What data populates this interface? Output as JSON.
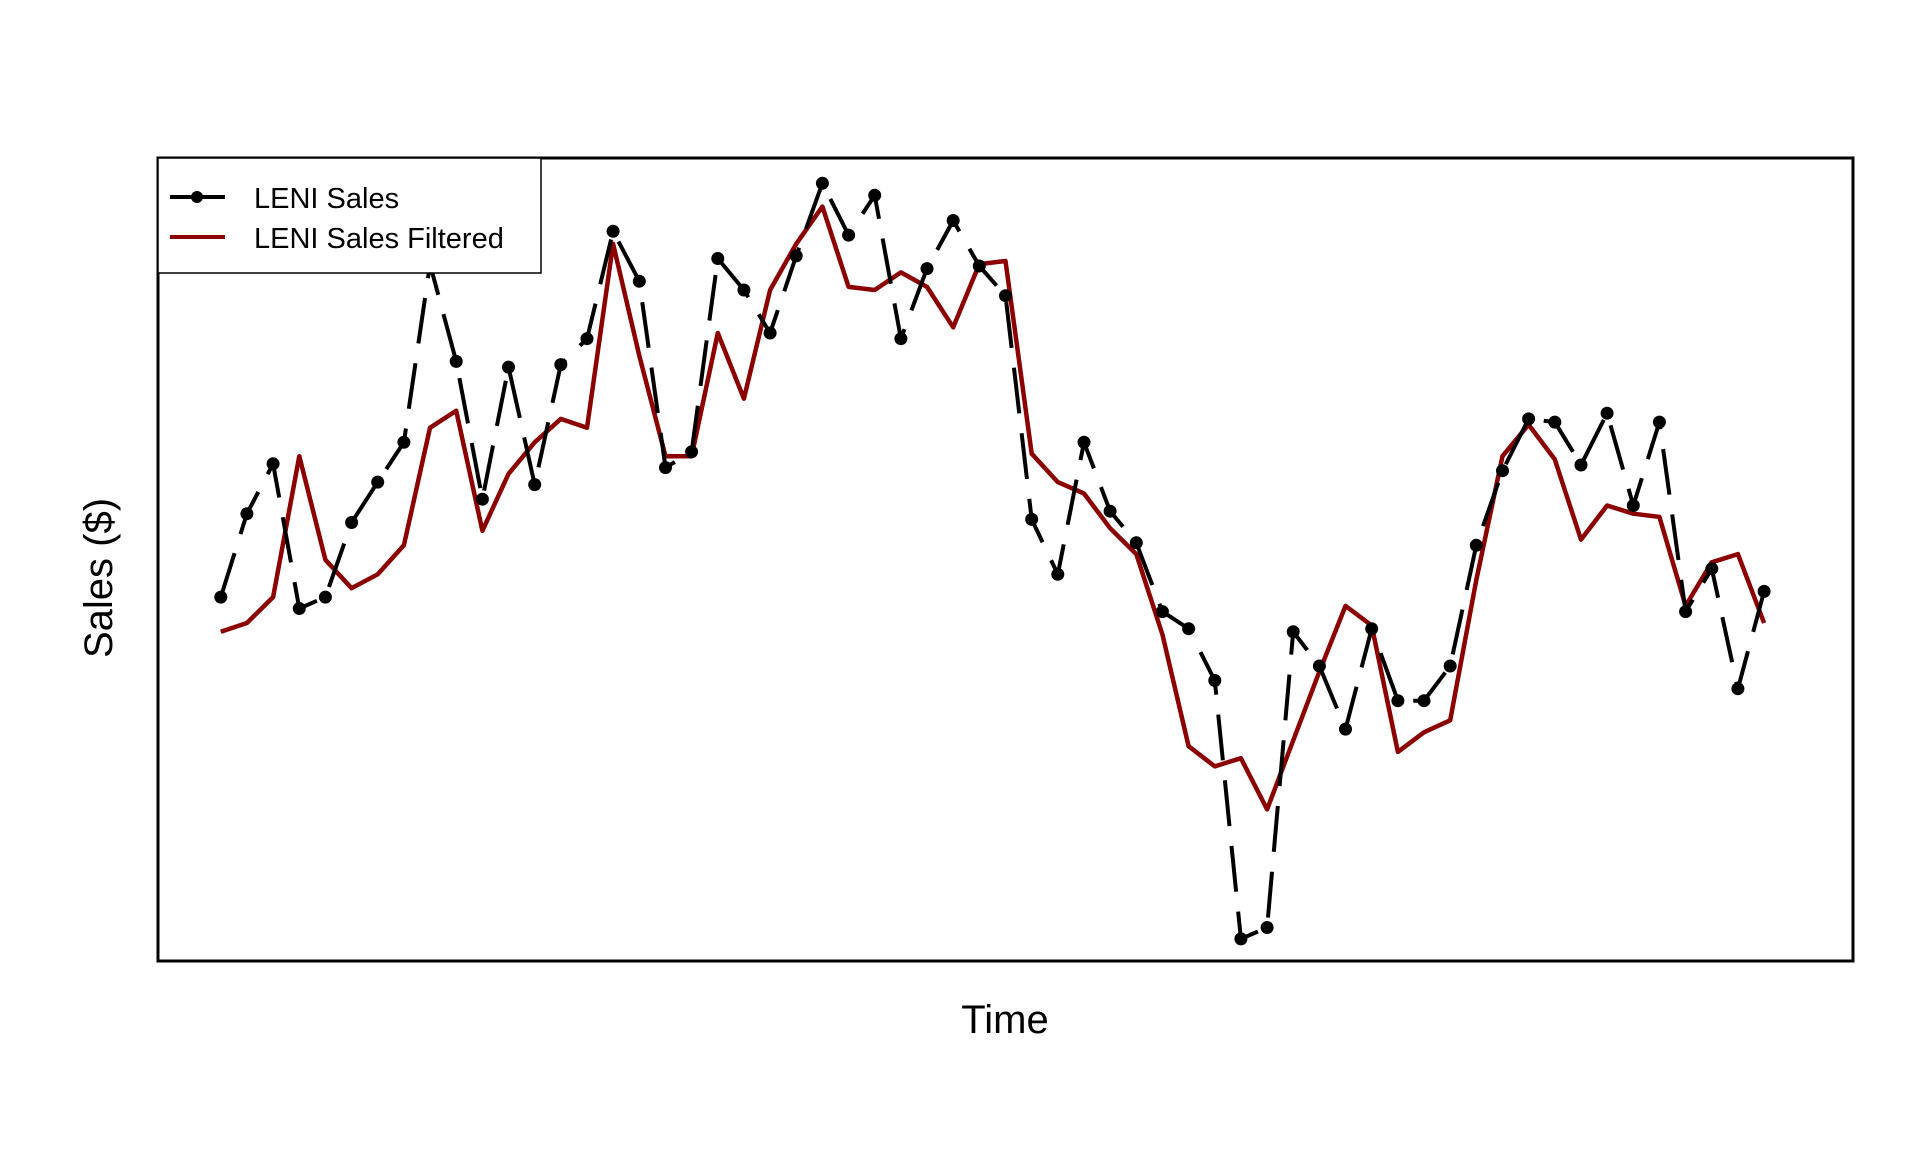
{
  "chart_data": {
    "type": "line",
    "xlabel": "Time",
    "ylabel": "Sales ($)",
    "x_ticks_shown": false,
    "y_ticks_shown": false,
    "grid": false,
    "legend_position": "top-left",
    "x": [
      1,
      2,
      3,
      4,
      5,
      6,
      7,
      8,
      9,
      10,
      11,
      12,
      13,
      14,
      15,
      16,
      17,
      18,
      19,
      20,
      21,
      22,
      23,
      24,
      25,
      26,
      27,
      28,
      29,
      30,
      31,
      32,
      33,
      34,
      35,
      36,
      37,
      38,
      39,
      40,
      41,
      42,
      43,
      44,
      45,
      46,
      47,
      48,
      49,
      50,
      51,
      52,
      53,
      54,
      55,
      56,
      57,
      58,
      59,
      60
    ],
    "xlim": [
      -1.4,
      63.4
    ],
    "ylim": [
      -3.76,
      8.95
    ],
    "series": [
      {
        "name": "LENI Sales",
        "color": "#000000",
        "line_style": "dashed",
        "markers": true,
        "values": [
          2.0,
          3.32,
          4.11,
          1.82,
          2.0,
          3.18,
          3.82,
          4.45,
          7.27,
          5.73,
          3.55,
          5.64,
          3.78,
          5.68,
          6.09,
          7.79,
          7.0,
          4.05,
          4.3,
          7.36,
          6.86,
          6.18,
          7.4,
          8.55,
          7.73,
          8.36,
          6.09,
          7.2,
          7.96,
          7.24,
          6.77,
          3.23,
          2.36,
          4.45,
          3.36,
          2.86,
          1.77,
          1.5,
          0.68,
          -3.41,
          -3.23,
          1.45,
          0.91,
          -0.09,
          1.5,
          0.36,
          0.36,
          0.91,
          2.82,
          4.0,
          4.82,
          4.77,
          4.09,
          4.91,
          3.45,
          4.77,
          1.77,
          2.45,
          0.55,
          2.09
        ]
      },
      {
        "name": "LENI Sales Filtered",
        "color": "#8b0000",
        "line_style": "solid",
        "markers": false,
        "values": [
          1.45,
          1.59,
          2.0,
          4.23,
          2.59,
          2.14,
          2.36,
          2.82,
          4.68,
          4.95,
          3.05,
          3.95,
          4.45,
          4.82,
          4.68,
          7.59,
          5.82,
          4.23,
          4.23,
          6.18,
          5.14,
          6.86,
          7.59,
          8.18,
          6.91,
          6.86,
          7.14,
          6.91,
          6.27,
          7.27,
          7.32,
          4.27,
          3.82,
          3.64,
          3.09,
          2.68,
          1.41,
          -0.36,
          -0.68,
          -0.55,
          -1.36,
          -0.27,
          0.82,
          1.86,
          1.55,
          -0.45,
          -0.14,
          0.05,
          2.27,
          4.23,
          4.73,
          4.18,
          2.91,
          3.45,
          3.32,
          3.27,
          1.86,
          2.55,
          2.68,
          1.59
        ]
      }
    ]
  }
}
